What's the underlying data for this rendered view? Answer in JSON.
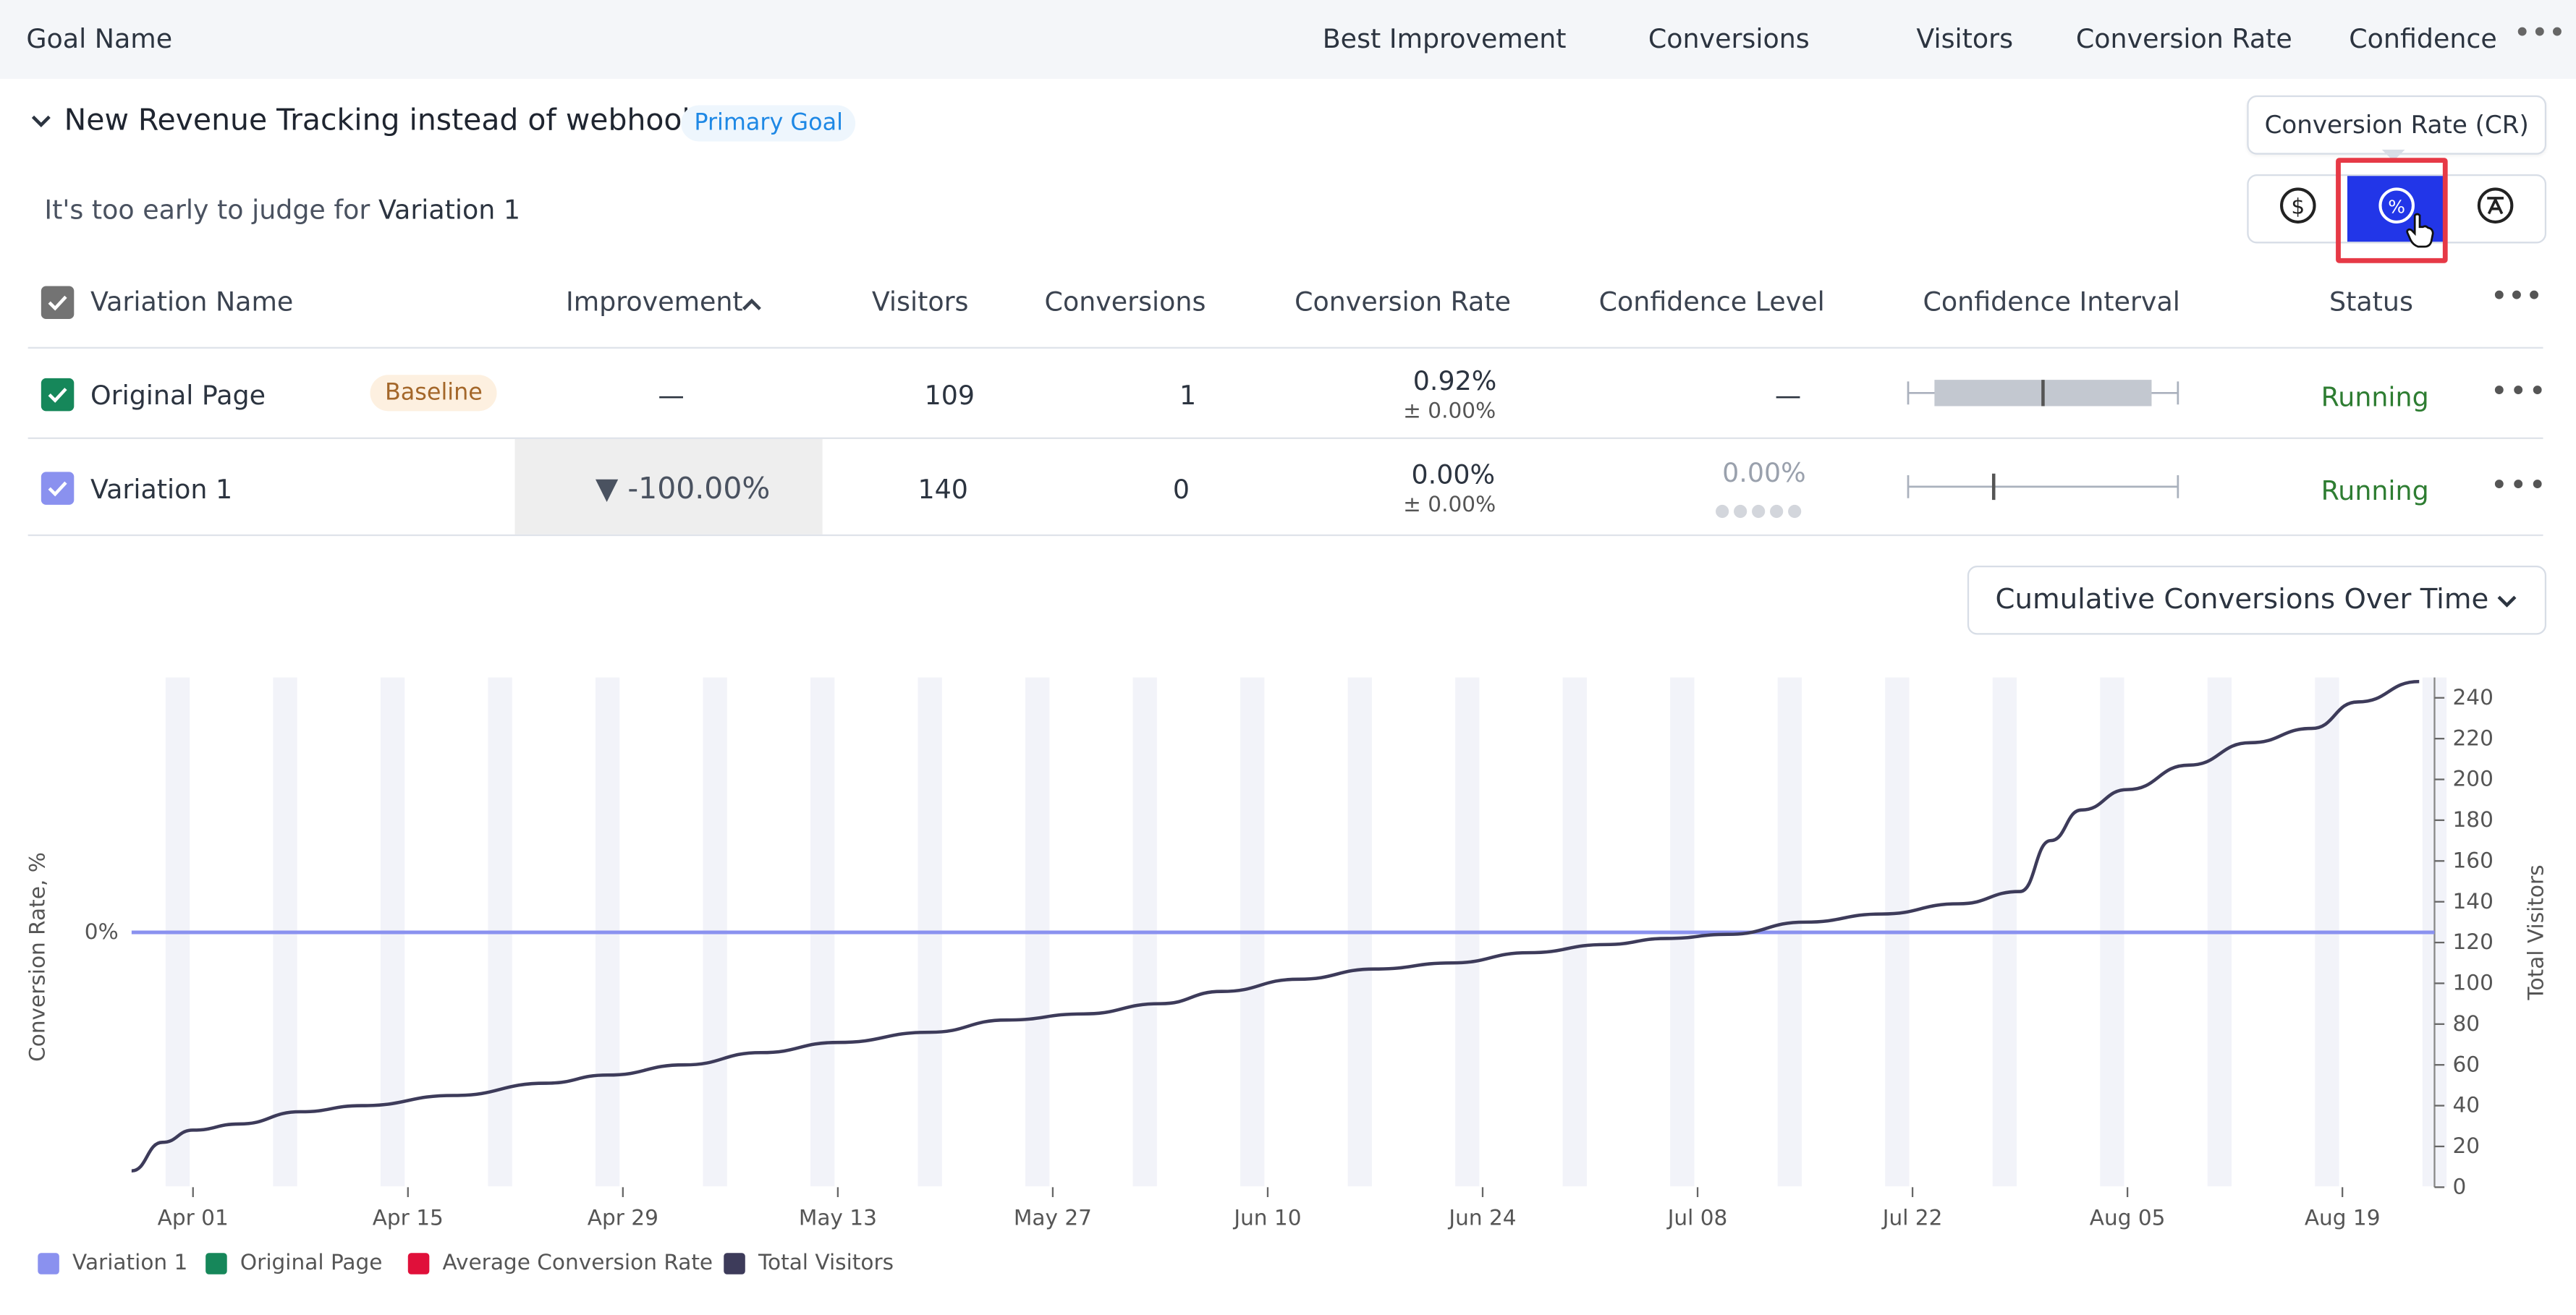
{
  "header": {
    "goal_name": "Goal Name",
    "best_improvement": "Best Improvement",
    "conversions": "Conversions",
    "visitors": "Visitors",
    "conversion_rate": "Conversion Rate",
    "confidence": "Confidence",
    "more": "•••"
  },
  "goal": {
    "title": "New Revenue Tracking instead of webhook",
    "badge": "Primary Goal",
    "judge_prefix": "It's too early to judge for",
    "judge_variation": "Variation 1"
  },
  "tooltip": "Conversion Rate (CR)",
  "metric_buttons": [
    {
      "name": "revenue",
      "icon": "dollar-icon",
      "active": false
    },
    {
      "name": "conversion-rate",
      "icon": "percent-icon",
      "active": true
    },
    {
      "name": "average",
      "icon": "average-icon",
      "active": false
    }
  ],
  "table": {
    "columns": {
      "variation_name": "Variation Name",
      "improvement": "Improvement",
      "visitors": "Visitors",
      "conversions": "Conversions",
      "conversion_rate": "Conversion Rate",
      "confidence_level": "Confidence Level",
      "confidence_interval": "Confidence Interval",
      "status": "Status",
      "more": "•••"
    },
    "rows": [
      {
        "name": "Original Page",
        "badge": "Baseline",
        "improvement": "—",
        "visitors": "109",
        "conversions": "1",
        "conversion_rate": "0.92%",
        "conversion_rate_pm": "± 0.00%",
        "confidence_level": "—",
        "status": "Running",
        "more": "•••",
        "checkbox_color": "#16875a"
      },
      {
        "name": "Variation 1",
        "improvement": "▼ -100.00%",
        "visitors": "140",
        "conversions": "0",
        "conversion_rate": "0.00%",
        "conversion_rate_pm": "± 0.00%",
        "confidence_level": "0.00%",
        "status": "Running",
        "more": "•••",
        "checkbox_color": "#8a91ef"
      }
    ]
  },
  "chart_selector": "Cumulative Conversions Over Time",
  "chart_data": {
    "type": "line",
    "title": "",
    "ylabel_left": "Conversion Rate, %",
    "ylabel_right": "Total Visitors",
    "left_ticks": [
      "0%"
    ],
    "x_tick_labels": [
      "Apr 01",
      "Apr 15",
      "Apr 29",
      "May 13",
      "May 27",
      "Jun 10",
      "Jun 24",
      "Jul 08",
      "Jul 22",
      "Aug 05",
      "Aug 19"
    ],
    "right_ylim": [
      0,
      250
    ],
    "right_ticks": [
      0,
      20,
      40,
      60,
      80,
      100,
      120,
      140,
      160,
      180,
      200,
      220,
      240
    ],
    "shaded_weekends": true,
    "series": [
      {
        "name": "Variation 1",
        "axis": "left",
        "color": "#8a91ef",
        "x": [
          "Mar 28",
          "Aug 25"
        ],
        "y": [
          0,
          0
        ]
      },
      {
        "name": "Total Visitors",
        "axis": "right",
        "color": "#3d3b5a",
        "x": [
          "Mar 28",
          "Mar 30",
          "Apr 01",
          "Apr 04",
          "Apr 08",
          "Apr 12",
          "Apr 18",
          "Apr 24",
          "Apr 28",
          "May 03",
          "May 08",
          "May 13",
          "May 19",
          "May 24",
          "May 29",
          "Jun 03",
          "Jun 07",
          "Jun 12",
          "Jun 17",
          "Jun 22",
          "Jun 27",
          "Jul 02",
          "Jul 06",
          "Jul 10",
          "Jul 15",
          "Jul 20",
          "Jul 25",
          "Jul 29",
          "Jul 31",
          "Aug 02",
          "Aug 05",
          "Aug 09",
          "Aug 13",
          "Aug 17",
          "Aug 20",
          "Aug 24"
        ],
        "y": [
          8,
          22,
          28,
          31,
          37,
          40,
          45,
          51,
          55,
          60,
          66,
          71,
          76,
          82,
          85,
          90,
          96,
          102,
          107,
          110,
          115,
          119,
          122,
          124,
          130,
          134,
          139,
          145,
          170,
          185,
          195,
          207,
          218,
          225,
          238,
          248
        ]
      }
    ],
    "legend": [
      {
        "label": "Variation 1",
        "color": "#8a91ef"
      },
      {
        "label": "Original Page",
        "color": "#16875a"
      },
      {
        "label": "Average Conversion Rate",
        "color": "#e0103a"
      },
      {
        "label": "Total Visitors",
        "color": "#3d3b5a"
      }
    ],
    "legend_position": "bottom-left"
  }
}
